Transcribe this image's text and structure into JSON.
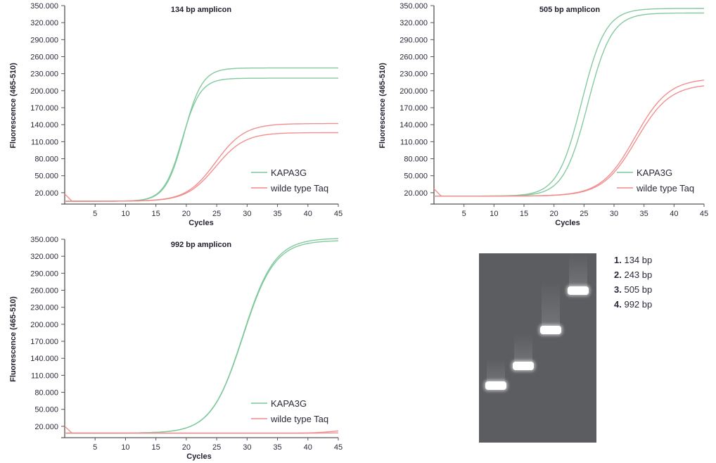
{
  "chart_data": [
    {
      "type": "line",
      "title": "134 bp amplicon",
      "xlabel": "Cycles",
      "ylabel": "Fluorescence (465-510)",
      "xlim": [
        0,
        45
      ],
      "ylim": [
        0,
        350000
      ],
      "x_ticks": [
        "5",
        "10",
        "15",
        "20",
        "25",
        "30",
        "35",
        "40",
        "45"
      ],
      "x_tick_values": [
        5,
        10,
        15,
        20,
        25,
        30,
        35,
        40,
        45
      ],
      "y_ticks": [
        "350.000",
        "320.000",
        "290.000",
        "260.000",
        "230.000",
        "200.000",
        "170.000",
        "140.000",
        "110.000",
        "80.000",
        "50.000",
        "20.000"
      ],
      "y_tick_values": [
        350000,
        320000,
        290000,
        260000,
        230000,
        200000,
        170000,
        140000,
        110000,
        80000,
        50000,
        20000
      ],
      "grid": false,
      "legend": {
        "position": "bottom-right",
        "entries": [
          {
            "label": "KAPA3G",
            "color": "#7cc79a"
          },
          {
            "label": "wilde type Taq",
            "color": "#f08a8a"
          }
        ]
      },
      "series": [
        {
          "name": "KAPA3G",
          "replicate": 1,
          "color": "#7cc79a",
          "model": {
            "baseline": 5000,
            "plateau": 240000,
            "midpoint": 19.6,
            "slope": 1.5
          }
        },
        {
          "name": "KAPA3G",
          "replicate": 2,
          "color": "#7cc79a",
          "model": {
            "baseline": 5000,
            "plateau": 222000,
            "midpoint": 19.3,
            "slope": 1.5
          }
        },
        {
          "name": "wilde type Taq",
          "replicate": 1,
          "color": "#f08a8a",
          "model": {
            "baseline": 5000,
            "plateau": 142000,
            "midpoint": 24.8,
            "slope": 2.4
          },
          "start_spike": 18000
        },
        {
          "name": "wilde type Taq",
          "replicate": 2,
          "color": "#f08a8a",
          "model": {
            "baseline": 5000,
            "plateau": 126000,
            "midpoint": 24.8,
            "slope": 2.4
          }
        }
      ]
    },
    {
      "type": "line",
      "title": "505 bp amplicon",
      "xlabel": "Cycles",
      "ylabel": "Fluorescence (465-510)",
      "xlim": [
        0,
        45
      ],
      "ylim": [
        0,
        350000
      ],
      "x_ticks": [
        "5",
        "10",
        "15",
        "20",
        "25",
        "30",
        "35",
        "40",
        "45"
      ],
      "x_tick_values": [
        5,
        10,
        15,
        20,
        25,
        30,
        35,
        40,
        45
      ],
      "y_ticks": [
        "350.000",
        "320.000",
        "290.000",
        "260.000",
        "230.000",
        "200.000",
        "170.000",
        "140.000",
        "110.000",
        "80.000",
        "50.000",
        "20.000"
      ],
      "y_tick_values": [
        350000,
        320000,
        290000,
        260000,
        230000,
        200000,
        170000,
        140000,
        110000,
        80000,
        50000,
        20000
      ],
      "grid": false,
      "legend": {
        "position": "bottom-right",
        "entries": [
          {
            "label": "KAPA3G",
            "color": "#7cc79a"
          },
          {
            "label": "wilde type Taq",
            "color": "#f08a8a"
          }
        ]
      },
      "series": [
        {
          "name": "KAPA3G",
          "replicate": 1,
          "color": "#7cc79a",
          "model": {
            "baseline": 14000,
            "plateau": 345000,
            "midpoint": 24.6,
            "slope": 2.0
          }
        },
        {
          "name": "KAPA3G",
          "replicate": 2,
          "color": "#7cc79a",
          "model": {
            "baseline": 14000,
            "plateau": 337000,
            "midpoint": 25.6,
            "slope": 2.0
          }
        },
        {
          "name": "wilde type Taq",
          "replicate": 1,
          "color": "#f08a8a",
          "model": {
            "baseline": 14000,
            "plateau": 222000,
            "midpoint": 33.5,
            "slope": 2.8
          },
          "start_spike": 27000
        },
        {
          "name": "wilde type Taq",
          "replicate": 2,
          "color": "#f08a8a",
          "model": {
            "baseline": 14000,
            "plateau": 212000,
            "midpoint": 33.7,
            "slope": 2.8
          }
        }
      ]
    },
    {
      "type": "line",
      "title": "992 bp amplicon",
      "xlabel": "Cycles",
      "ylabel": "Fluorescence (465-510)",
      "xlim": [
        0,
        45
      ],
      "ylim": [
        0,
        350000
      ],
      "x_ticks": [
        "5",
        "10",
        "15",
        "20",
        "25",
        "30",
        "35",
        "40",
        "45"
      ],
      "x_tick_values": [
        5,
        10,
        15,
        20,
        25,
        30,
        35,
        40,
        45
      ],
      "y_ticks": [
        "350.000",
        "320.000",
        "290.000",
        "260.000",
        "230.000",
        "200.000",
        "170.000",
        "140.000",
        "110.000",
        "80.000",
        "50.000",
        "20.000"
      ],
      "y_tick_values": [
        350000,
        320000,
        290000,
        260000,
        230000,
        200000,
        170000,
        140000,
        110000,
        80000,
        50000,
        20000
      ],
      "grid": false,
      "legend": {
        "position": "bottom-right",
        "entries": [
          {
            "label": "KAPA3G",
            "color": "#7cc79a"
          },
          {
            "label": "wilde type Taq",
            "color": "#f08a8a"
          }
        ]
      },
      "series": [
        {
          "name": "KAPA3G",
          "replicate": 1,
          "color": "#7cc79a",
          "model": {
            "baseline": 8000,
            "plateau": 352000,
            "midpoint": 29.3,
            "slope": 2.6
          }
        },
        {
          "name": "KAPA3G",
          "replicate": 2,
          "color": "#7cc79a",
          "model": {
            "baseline": 8000,
            "plateau": 348000,
            "midpoint": 29.3,
            "slope": 2.6
          }
        },
        {
          "name": "wilde type Taq",
          "replicate": 1,
          "color": "#f08a8a",
          "flat_value": 8000,
          "end_value": 12000,
          "start_spike": 20000
        },
        {
          "name": "wilde type Taq",
          "replicate": 2,
          "color": "#f08a8a",
          "flat_value": 8000,
          "end_value": 8500
        }
      ]
    }
  ],
  "gel": {
    "background_color": "#5b5d60",
    "lanes": [
      {
        "number": "1.",
        "label": "134 bp",
        "size_bp": 134
      },
      {
        "number": "2.",
        "label": "243 bp",
        "size_bp": 243
      },
      {
        "number": "3.",
        "label": "505 bp",
        "size_bp": 505
      },
      {
        "number": "4.",
        "label": "992 bp",
        "size_bp": 992
      }
    ]
  }
}
